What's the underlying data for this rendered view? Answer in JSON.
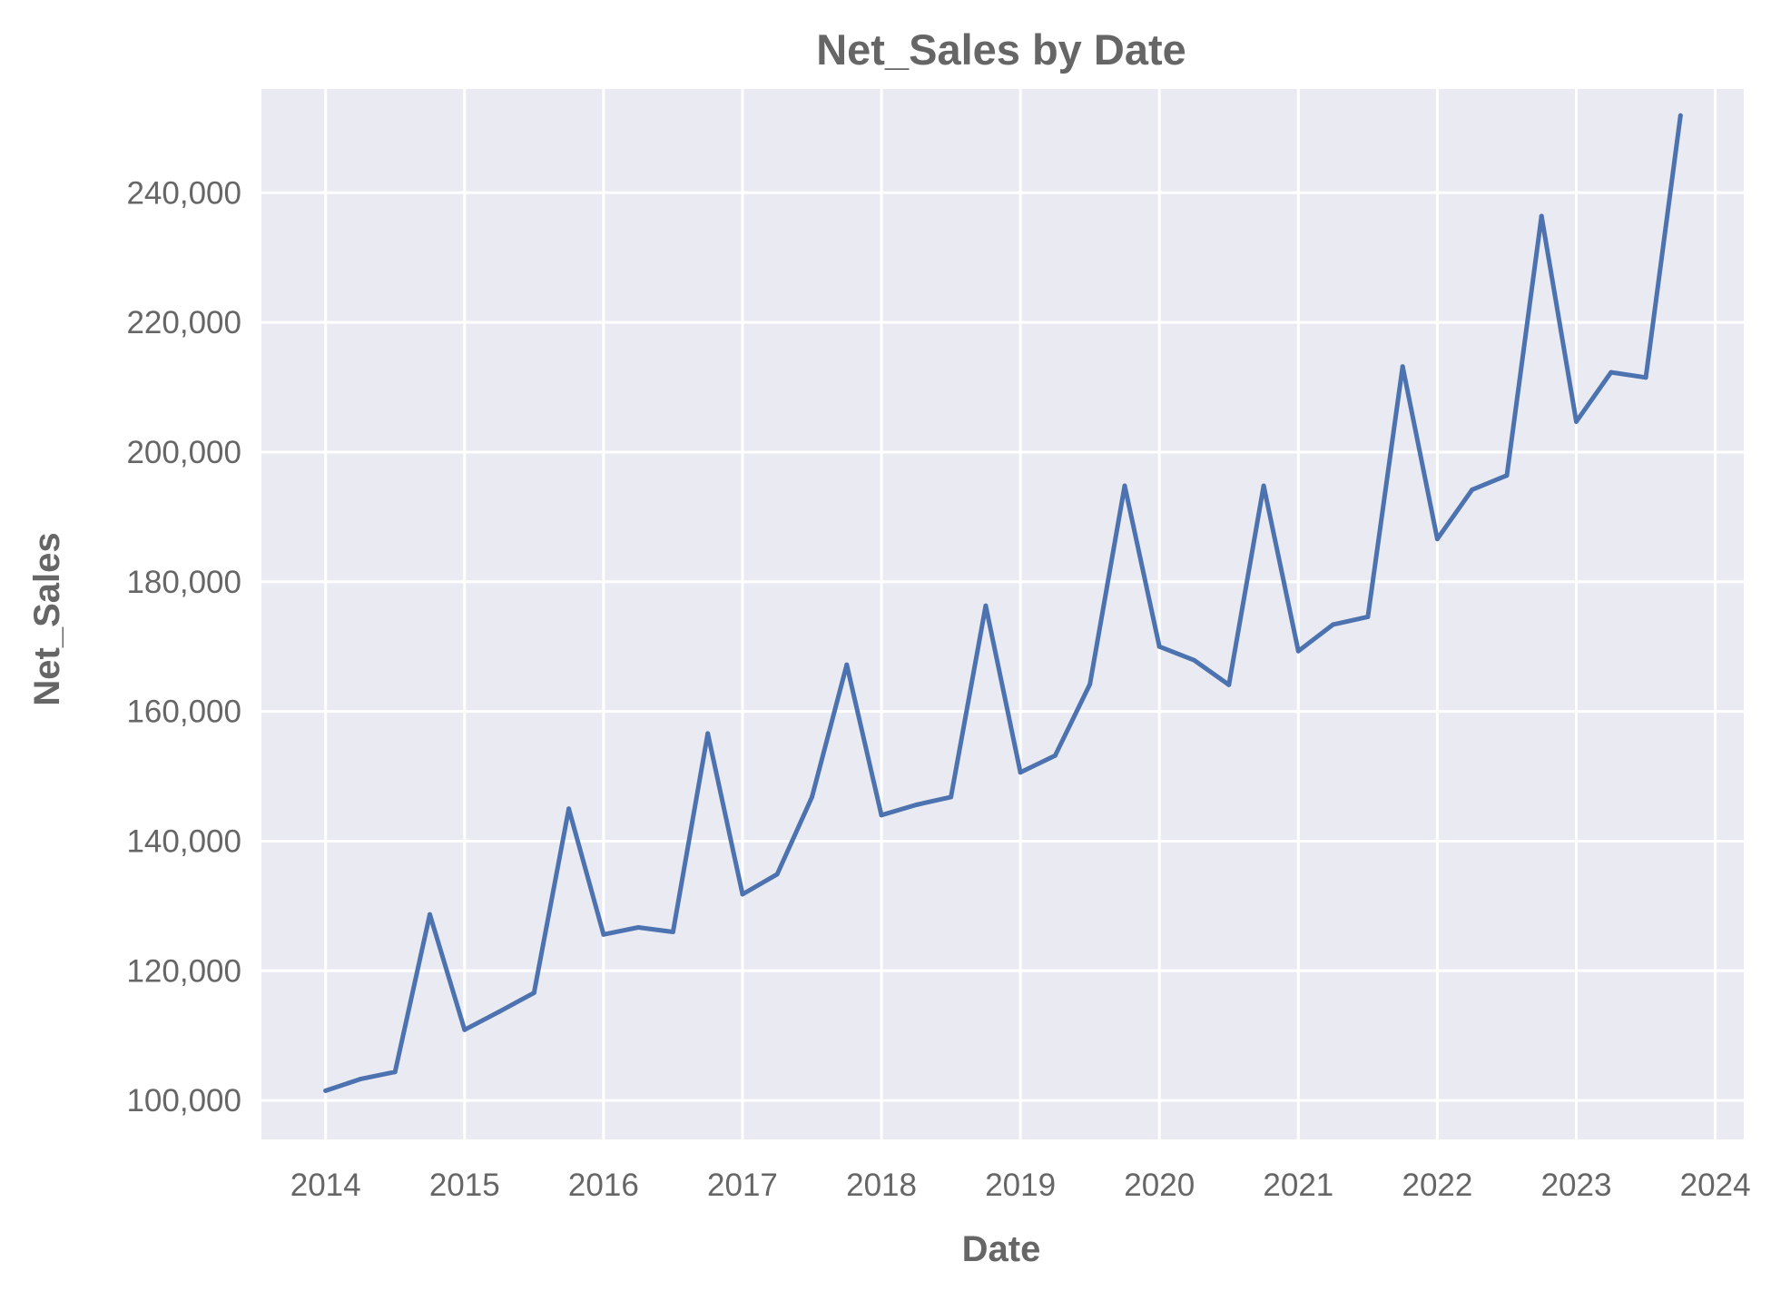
{
  "chart_data": {
    "type": "line",
    "title": "Net_Sales by Date",
    "xlabel": "Date",
    "ylabel": "Net_Sales",
    "x_ticks": [
      "2014",
      "2015",
      "2016",
      "2017",
      "2018",
      "2019",
      "2020",
      "2021",
      "2022",
      "2023",
      "2024"
    ],
    "y_ticks": [
      "100,000",
      "120,000",
      "140,000",
      "160,000",
      "180,000",
      "200,000",
      "220,000",
      "240,000"
    ],
    "xlim": [
      "2013-07-15",
      "2024-03-15"
    ],
    "ylim": [
      94000,
      256000
    ],
    "grid": true,
    "colors": {
      "background": "#EAEAF2",
      "grid": "#FFFFFF",
      "line": "#4C72B0",
      "text": "#666666"
    },
    "series": [
      {
        "x": [
          "2014-01-01",
          "2014-04-01",
          "2014-07-01",
          "2014-10-01",
          "2015-01-01",
          "2015-04-01",
          "2015-07-01",
          "2015-10-01",
          "2016-01-01",
          "2016-04-01",
          "2016-07-01",
          "2016-10-01",
          "2017-01-01",
          "2017-04-01",
          "2017-07-01",
          "2017-10-01",
          "2018-01-01",
          "2018-04-01",
          "2018-07-01",
          "2018-10-01",
          "2019-01-01",
          "2019-04-01",
          "2019-07-01",
          "2019-10-01",
          "2020-01-01",
          "2020-04-01",
          "2020-07-01",
          "2020-10-01",
          "2021-01-01",
          "2021-04-01",
          "2021-07-01",
          "2021-10-01",
          "2022-01-01",
          "2022-04-01",
          "2022-07-01",
          "2022-10-01",
          "2023-01-01",
          "2023-04-01",
          "2023-07-01",
          "2023-10-01"
        ],
        "values": [
          101500,
          103300,
          104400,
          128700,
          110900,
          113700,
          116600,
          145000,
          125600,
          126700,
          126000,
          156600,
          131800,
          134900,
          146800,
          167200,
          144000,
          145600,
          146800,
          176300,
          150600,
          153200,
          164200,
          194800,
          170000,
          167900,
          164100,
          194800,
          169300,
          173400,
          174600,
          213200,
          186600,
          194200,
          196400,
          236400,
          204700,
          212300,
          211500,
          251900
        ]
      }
    ]
  }
}
